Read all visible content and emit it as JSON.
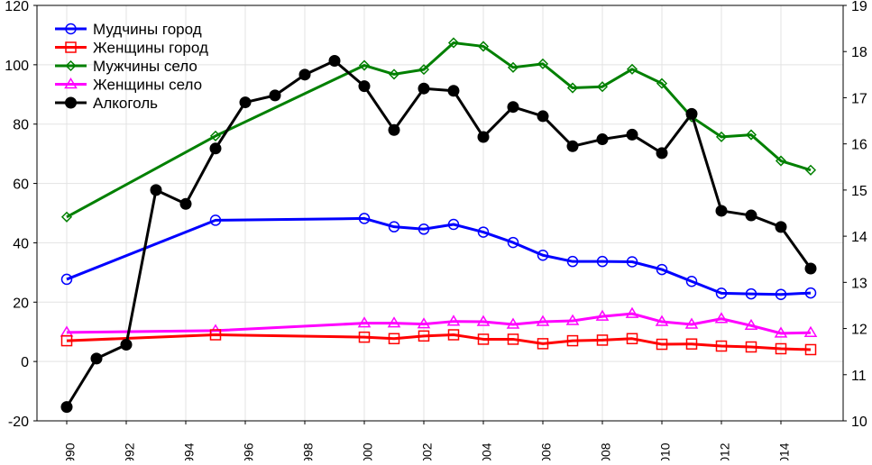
{
  "chart_data": {
    "type": "line",
    "title": "",
    "xlabel": "",
    "ylabel": "",
    "y2label": "",
    "xlim": [
      1989,
      2016
    ],
    "ylim": [
      -20,
      120
    ],
    "y2lim": [
      10,
      19
    ],
    "grid": true,
    "legend_position": "top-left",
    "x_ticks": [
      "1990",
      "1992",
      "1994",
      "1996",
      "1998",
      "2000",
      "2002",
      "2004",
      "2006",
      "2008",
      "2010",
      "2012",
      "2014"
    ],
    "y_ticks": [
      "-20",
      "0",
      "20",
      "40",
      "60",
      "80",
      "100",
      "120"
    ],
    "y2_ticks": [
      "10",
      "11",
      "12",
      "13",
      "14",
      "15",
      "16",
      "17",
      "18",
      "19"
    ],
    "series": [
      {
        "name": "Мудчины город",
        "axis": "left",
        "color": "#0000ff",
        "marker": "circle",
        "x": [
          1990,
          1995,
          2000,
          2001,
          2002,
          2003,
          2004,
          2005,
          2006,
          2007,
          2008,
          2009,
          2010,
          2011,
          2012,
          2013,
          2014,
          2015
        ],
        "values": [
          27.7,
          47.6,
          48.2,
          45.4,
          44.6,
          46.2,
          43.6,
          40.1,
          35.8,
          33.7,
          33.7,
          33.6,
          31.0,
          27.0,
          23.0,
          22.8,
          22.6,
          23.1
        ]
      },
      {
        "name": "Женщины город",
        "axis": "left",
        "color": "#ff0000",
        "marker": "square",
        "x": [
          1990,
          1995,
          2000,
          2001,
          2002,
          2003,
          2004,
          2005,
          2006,
          2007,
          2008,
          2009,
          2010,
          2011,
          2012,
          2013,
          2014,
          2015
        ],
        "values": [
          7.0,
          9.0,
          8.2,
          7.7,
          8.6,
          9.0,
          7.5,
          7.5,
          6.0,
          7.0,
          7.2,
          7.7,
          5.8,
          5.9,
          5.2,
          4.9,
          4.3,
          4.0
        ]
      },
      {
        "name": "Мужчины село",
        "axis": "left",
        "color": "#008000",
        "marker": "diamond",
        "x": [
          1990,
          1995,
          2000,
          2001,
          2002,
          2003,
          2004,
          2005,
          2006,
          2007,
          2008,
          2009,
          2010,
          2011,
          2012,
          2013,
          2014,
          2015
        ],
        "values": [
          48.7,
          76.0,
          99.8,
          96.8,
          98.4,
          107.4,
          106.2,
          99.1,
          100.3,
          92.2,
          92.6,
          98.5,
          93.7,
          82.4,
          75.7,
          76.4,
          67.6,
          64.5
        ]
      },
      {
        "name": "Женщины село",
        "axis": "left",
        "color": "#ff00ff",
        "marker": "triangle",
        "x": [
          1990,
          1995,
          2000,
          2001,
          2002,
          2003,
          2004,
          2005,
          2006,
          2007,
          2008,
          2009,
          2010,
          2011,
          2012,
          2013,
          2014,
          2015
        ],
        "values": [
          9.8,
          10.4,
          12.9,
          12.9,
          12.6,
          13.5,
          13.4,
          12.5,
          13.4,
          13.7,
          15.2,
          16.1,
          13.4,
          12.5,
          14.4,
          12.1,
          9.5,
          9.7
        ]
      },
      {
        "name": "Алкоголь",
        "axis": "right",
        "color": "#000000",
        "marker": "filled-circle",
        "x": [
          1990,
          1991,
          1992,
          1993,
          1994,
          1995,
          1996,
          1997,
          1998,
          1999,
          2000,
          2001,
          2002,
          2003,
          2004,
          2005,
          2006,
          2007,
          2008,
          2009,
          2010,
          2011,
          2012,
          2013,
          2014,
          2015
        ],
        "values": [
          10.3,
          11.35,
          11.65,
          15.0,
          14.7,
          15.9,
          16.9,
          17.05,
          17.5,
          17.8,
          17.25,
          16.3,
          17.2,
          17.15,
          16.15,
          16.8,
          16.6,
          15.95,
          16.1,
          16.2,
          15.8,
          16.65,
          14.55,
          14.45,
          14.2,
          13.3
        ]
      }
    ]
  }
}
